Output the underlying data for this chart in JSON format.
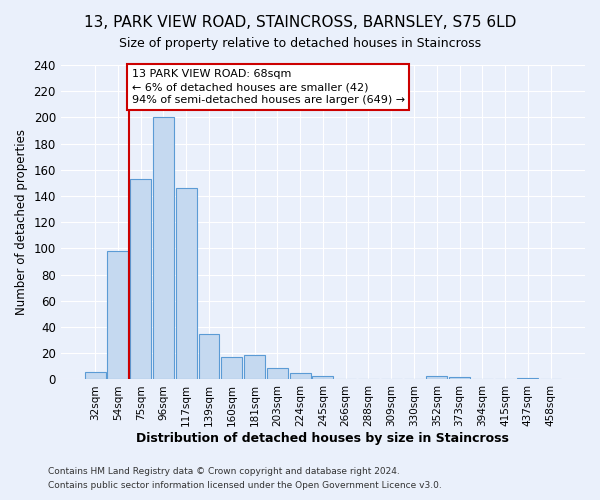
{
  "title": "13, PARK VIEW ROAD, STAINCROSS, BARNSLEY, S75 6LD",
  "subtitle": "Size of property relative to detached houses in Staincross",
  "xlabel": "Distribution of detached houses by size in Staincross",
  "ylabel": "Number of detached properties",
  "bin_labels": [
    "32sqm",
    "54sqm",
    "75sqm",
    "96sqm",
    "117sqm",
    "139sqm",
    "160sqm",
    "181sqm",
    "203sqm",
    "224sqm",
    "245sqm",
    "266sqm",
    "288sqm",
    "309sqm",
    "330sqm",
    "352sqm",
    "373sqm",
    "394sqm",
    "415sqm",
    "437sqm",
    "458sqm"
  ],
  "bar_heights": [
    6,
    98,
    153,
    200,
    146,
    35,
    17,
    19,
    9,
    5,
    3,
    0,
    0,
    0,
    0,
    3,
    2,
    0,
    0,
    1,
    0
  ],
  "bar_color": "#c5d9f0",
  "bar_edge_color": "#5b9bd5",
  "vline_color": "#cc0000",
  "vline_x_index": 1.5,
  "ylim": [
    0,
    240
  ],
  "yticks": [
    0,
    20,
    40,
    60,
    80,
    100,
    120,
    140,
    160,
    180,
    200,
    220,
    240
  ],
  "annotation_title": "13 PARK VIEW ROAD: 68sqm",
  "annotation_line1": "← 6% of detached houses are smaller (42)",
  "annotation_line2": "94% of semi-detached houses are larger (649) →",
  "annotation_box_color": "#ffffff",
  "annotation_box_edge": "#cc0000",
  "footer_line1": "Contains HM Land Registry data © Crown copyright and database right 2024.",
  "footer_line2": "Contains public sector information licensed under the Open Government Licence v3.0.",
  "background_color": "#eaf0fb",
  "plot_bg_color": "#eaf0fb",
  "title_fontsize": 11,
  "subtitle_fontsize": 9
}
